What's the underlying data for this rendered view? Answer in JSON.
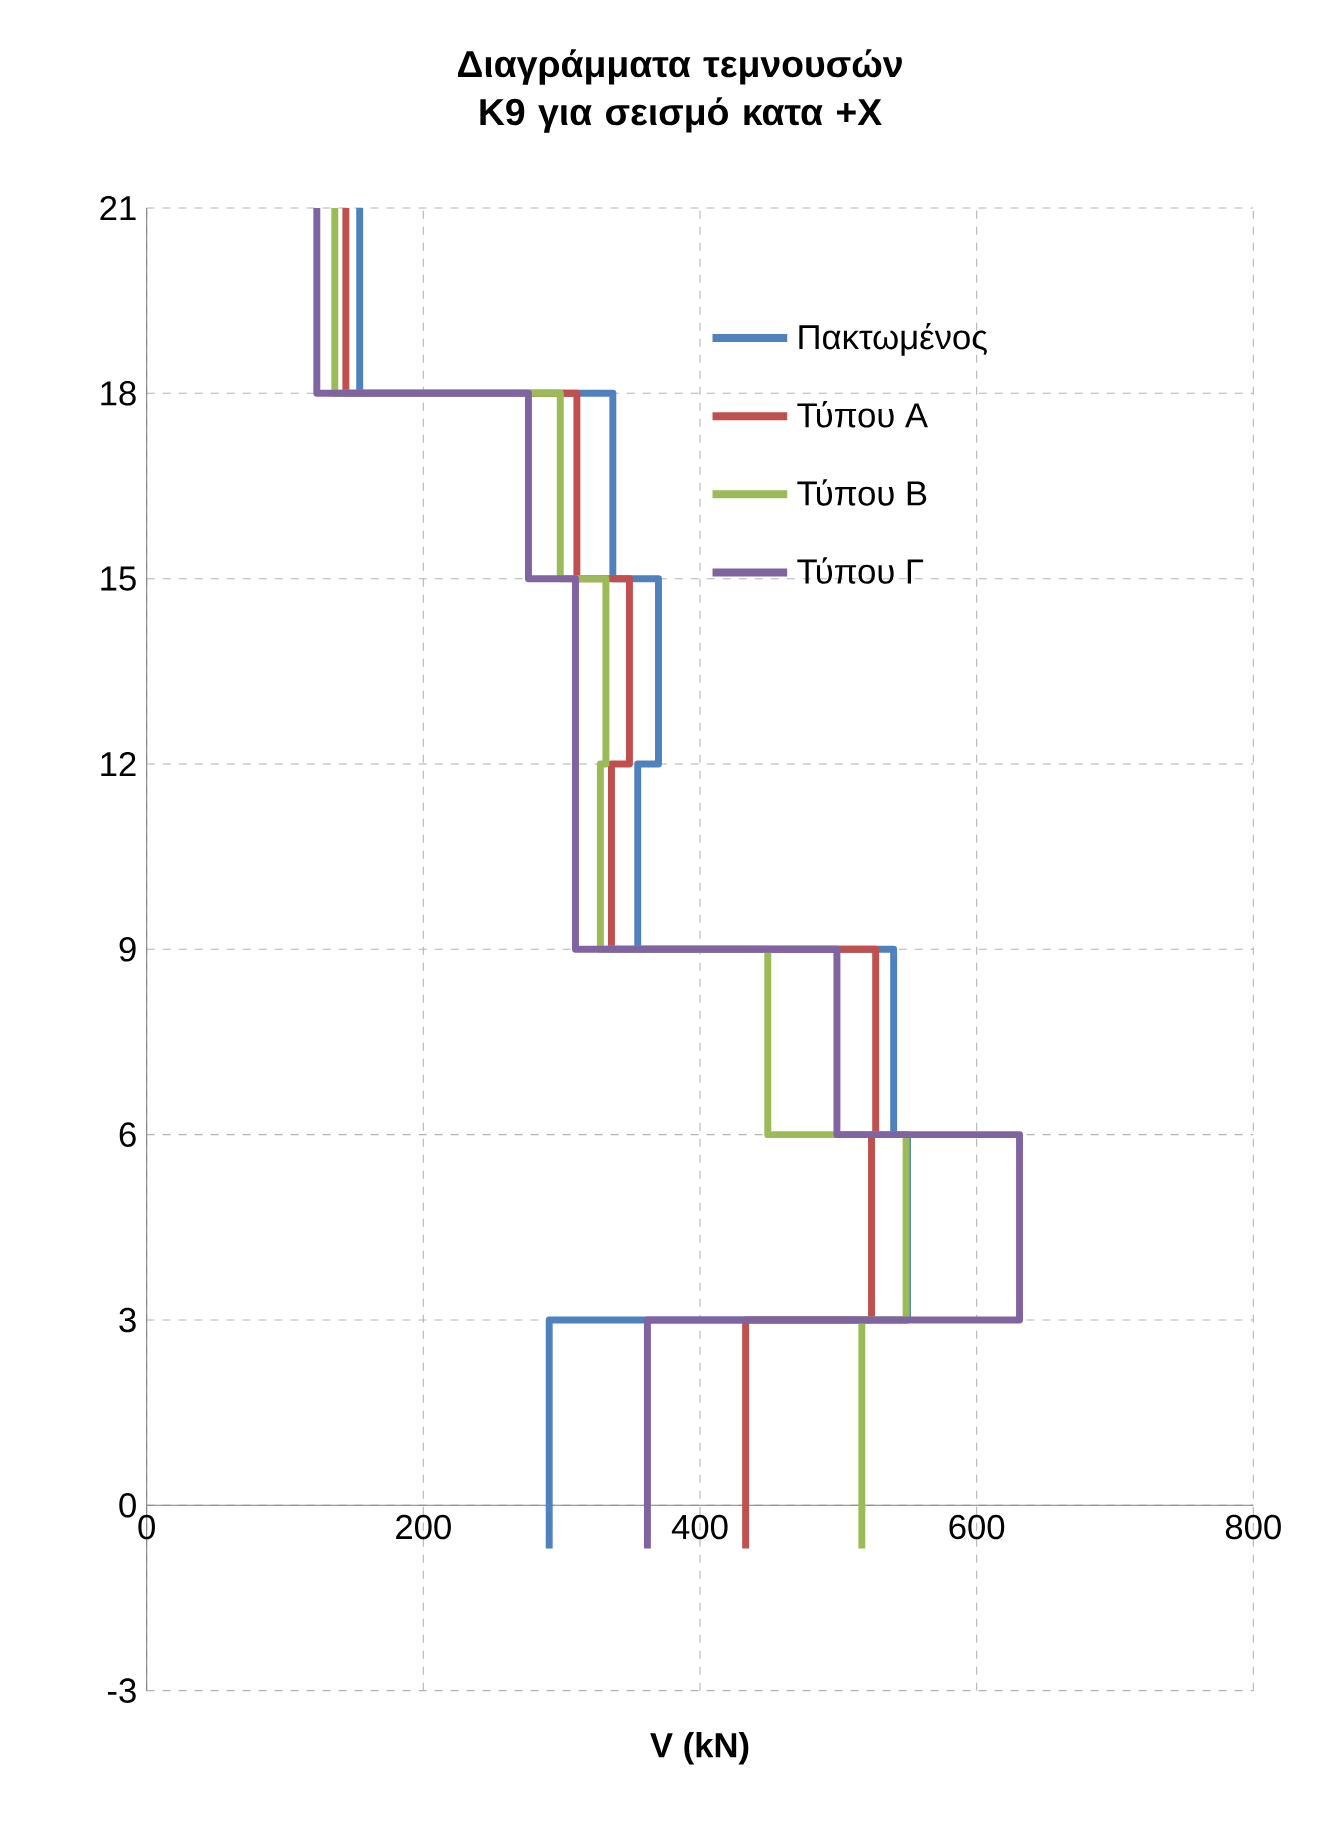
{
  "chart_data": {
    "type": "line",
    "title": "Διαγράμματα τεμνουσών Κ9 για σεισμό κατα +Χ",
    "xlabel": "V (kN)",
    "xlim": [
      0,
      800
    ],
    "xticks": [
      0,
      200,
      400,
      600,
      800
    ],
    "ylim": [
      -3,
      21
    ],
    "yticks": [
      -3,
      0,
      3,
      6,
      9,
      12,
      15,
      18,
      21
    ],
    "grid": true,
    "legend": "top right",
    "marker": "none",
    "line_style": "solid",
    "series": [
      {
        "name": "Πακτωμένος",
        "color": "#4f81bd",
        "x": [
          154,
          154,
          337,
          337,
          370,
          370,
          355,
          355,
          540,
          540,
          550,
          550,
          291,
          291
        ],
        "values": [
          21,
          18,
          18,
          15,
          15,
          12,
          12,
          9,
          9,
          6,
          6,
          3,
          3,
          -0.7
        ]
      },
      {
        "name": "Τύπου Α",
        "color": "#c0504d",
        "x": [
          144,
          144,
          311,
          311,
          349,
          349,
          336,
          336,
          527,
          527,
          524,
          524,
          433,
          433
        ],
        "values": [
          21,
          18,
          18,
          15,
          15,
          12,
          12,
          9,
          9,
          6,
          6,
          3,
          3,
          -0.7
        ]
      },
      {
        "name": "Τύπου Β",
        "color": "#9bbb59",
        "x": [
          136,
          136,
          299,
          299,
          332,
          332,
          328,
          328,
          449,
          449,
          549,
          549,
          517,
          517
        ],
        "values": [
          21,
          18,
          18,
          15,
          15,
          12,
          12,
          9,
          9,
          6,
          6,
          3,
          3,
          -0.7
        ]
      },
      {
        "name": "Τύπου Γ",
        "color": "#8064a2",
        "x": [
          123,
          123,
          276,
          276,
          310,
          310,
          499,
          499,
          631,
          631,
          362,
          362
        ],
        "values": [
          21,
          18,
          18,
          15,
          15,
          9,
          9,
          6,
          6,
          3,
          3,
          -0.7
        ]
      }
    ]
  }
}
